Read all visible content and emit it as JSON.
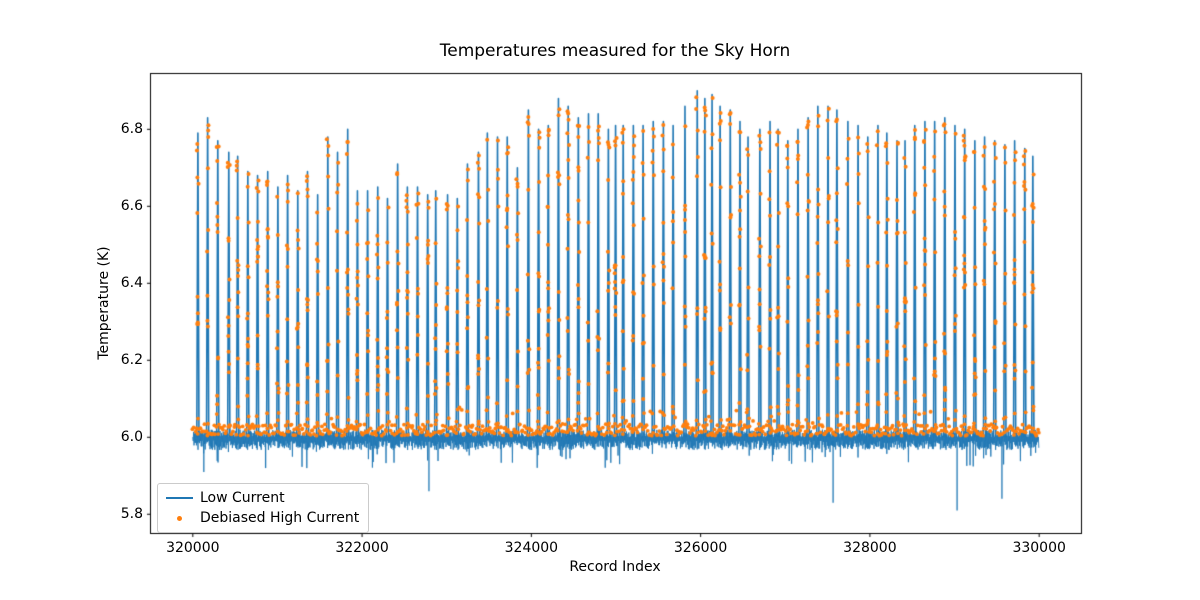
{
  "figure": {
    "title": "Temperatures measured for the Sky Horn",
    "xlabel": "Record Index",
    "ylabel": "Temperature (K)",
    "background": "#ffffff",
    "frame_color": "#000000",
    "text_color": "#000000"
  },
  "legend": {
    "position": "lower left",
    "items": [
      {
        "label": "Low Current",
        "type": "line",
        "color": "#1f77b4"
      },
      {
        "label": "Debiased High Current",
        "type": "dot",
        "color": "#ff7f0e"
      }
    ]
  },
  "chart_data": {
    "type": "line",
    "title": "Temperatures measured for the Sky Horn",
    "xlabel": "Record Index",
    "ylabel": "Temperature (K)",
    "xlim": [
      319500,
      330500
    ],
    "ylim": [
      5.75,
      6.945
    ],
    "xticks": [
      320000,
      322000,
      324000,
      326000,
      328000,
      330000
    ],
    "yticks": [
      5.8,
      6.0,
      6.2,
      6.4,
      6.6,
      6.8
    ],
    "grid": false,
    "legend_position": "lower left",
    "series": [
      {
        "name": "Low Current",
        "color": "#1f77b4",
        "style": "line",
        "baseline_level": 6.0,
        "baseline_noise_up": 0.02,
        "baseline_noise_down": 0.035,
        "spike_period_records": 120,
        "spikes": [
          [
            320060,
            6.79
          ],
          [
            320175,
            6.83
          ],
          [
            320295,
            6.77
          ],
          [
            320425,
            6.74
          ],
          [
            320530,
            6.73
          ],
          [
            320650,
            6.69
          ],
          [
            320765,
            6.68
          ],
          [
            320885,
            6.69
          ],
          [
            321005,
            6.65
          ],
          [
            321120,
            6.68
          ],
          [
            321240,
            6.64
          ],
          [
            321355,
            6.69
          ],
          [
            321475,
            6.63
          ],
          [
            321595,
            6.78
          ],
          [
            321710,
            6.74
          ],
          [
            321830,
            6.8
          ],
          [
            321945,
            6.64
          ],
          [
            322065,
            6.64
          ],
          [
            322185,
            6.65
          ],
          [
            322300,
            6.62
          ],
          [
            322420,
            6.71
          ],
          [
            322535,
            6.65
          ],
          [
            322655,
            6.65
          ],
          [
            322775,
            6.63
          ],
          [
            322870,
            6.64
          ],
          [
            323010,
            6.63
          ],
          [
            323125,
            6.62
          ],
          [
            323245,
            6.71
          ],
          [
            323375,
            6.74
          ],
          [
            323480,
            6.79
          ],
          [
            323600,
            6.78
          ],
          [
            323715,
            6.78
          ],
          [
            323835,
            6.7
          ],
          [
            323965,
            6.85
          ],
          [
            324085,
            6.8
          ],
          [
            324200,
            6.81
          ],
          [
            324320,
            6.88
          ],
          [
            324435,
            6.86
          ],
          [
            324555,
            6.83
          ],
          [
            324675,
            6.84
          ],
          [
            324790,
            6.84
          ],
          [
            324910,
            6.8
          ],
          [
            324995,
            6.81
          ],
          [
            325085,
            6.81
          ],
          [
            325205,
            6.81
          ],
          [
            325320,
            6.81
          ],
          [
            325440,
            6.82
          ],
          [
            325560,
            6.82
          ],
          [
            325675,
            6.81
          ],
          [
            325815,
            6.86
          ],
          [
            325960,
            6.9
          ],
          [
            326050,
            6.88
          ],
          [
            326135,
            6.89
          ],
          [
            326230,
            6.86
          ],
          [
            326350,
            6.85
          ],
          [
            326465,
            6.82
          ],
          [
            326560,
            6.78
          ],
          [
            326700,
            6.8
          ],
          [
            326820,
            6.82
          ],
          [
            326915,
            6.8
          ],
          [
            327030,
            6.77
          ],
          [
            327150,
            6.8
          ],
          [
            327270,
            6.83
          ],
          [
            327385,
            6.86
          ],
          [
            327505,
            6.86
          ],
          [
            327610,
            6.85
          ],
          [
            327740,
            6.82
          ],
          [
            327860,
            6.81
          ],
          [
            327975,
            6.78
          ],
          [
            328095,
            6.81
          ],
          [
            328200,
            6.79
          ],
          [
            328320,
            6.77
          ],
          [
            328415,
            6.77
          ],
          [
            328530,
            6.81
          ],
          [
            328650,
            6.82
          ],
          [
            328765,
            6.82
          ],
          [
            328885,
            6.83
          ],
          [
            329005,
            6.81
          ],
          [
            329120,
            6.8
          ],
          [
            329240,
            6.77
          ],
          [
            329355,
            6.78
          ],
          [
            329475,
            6.77
          ],
          [
            329595,
            6.76
          ],
          [
            329710,
            6.77
          ],
          [
            329830,
            6.75
          ],
          [
            329925,
            6.73
          ]
        ],
        "down_spikes": [
          [
            320130,
            5.91
          ],
          [
            320860,
            5.92
          ],
          [
            322790,
            5.86
          ],
          [
            327565,
            5.83
          ],
          [
            329030,
            5.81
          ],
          [
            329560,
            5.84
          ]
        ]
      },
      {
        "name": "Debiased High Current",
        "color": "#ff7f0e",
        "style": "scatter",
        "marker": "dot",
        "band_level": 6.01,
        "band_spread": 0.03,
        "traces_spikes": true,
        "dots_per_spike": 9,
        "top_cluster_dots": 3
      }
    ]
  }
}
